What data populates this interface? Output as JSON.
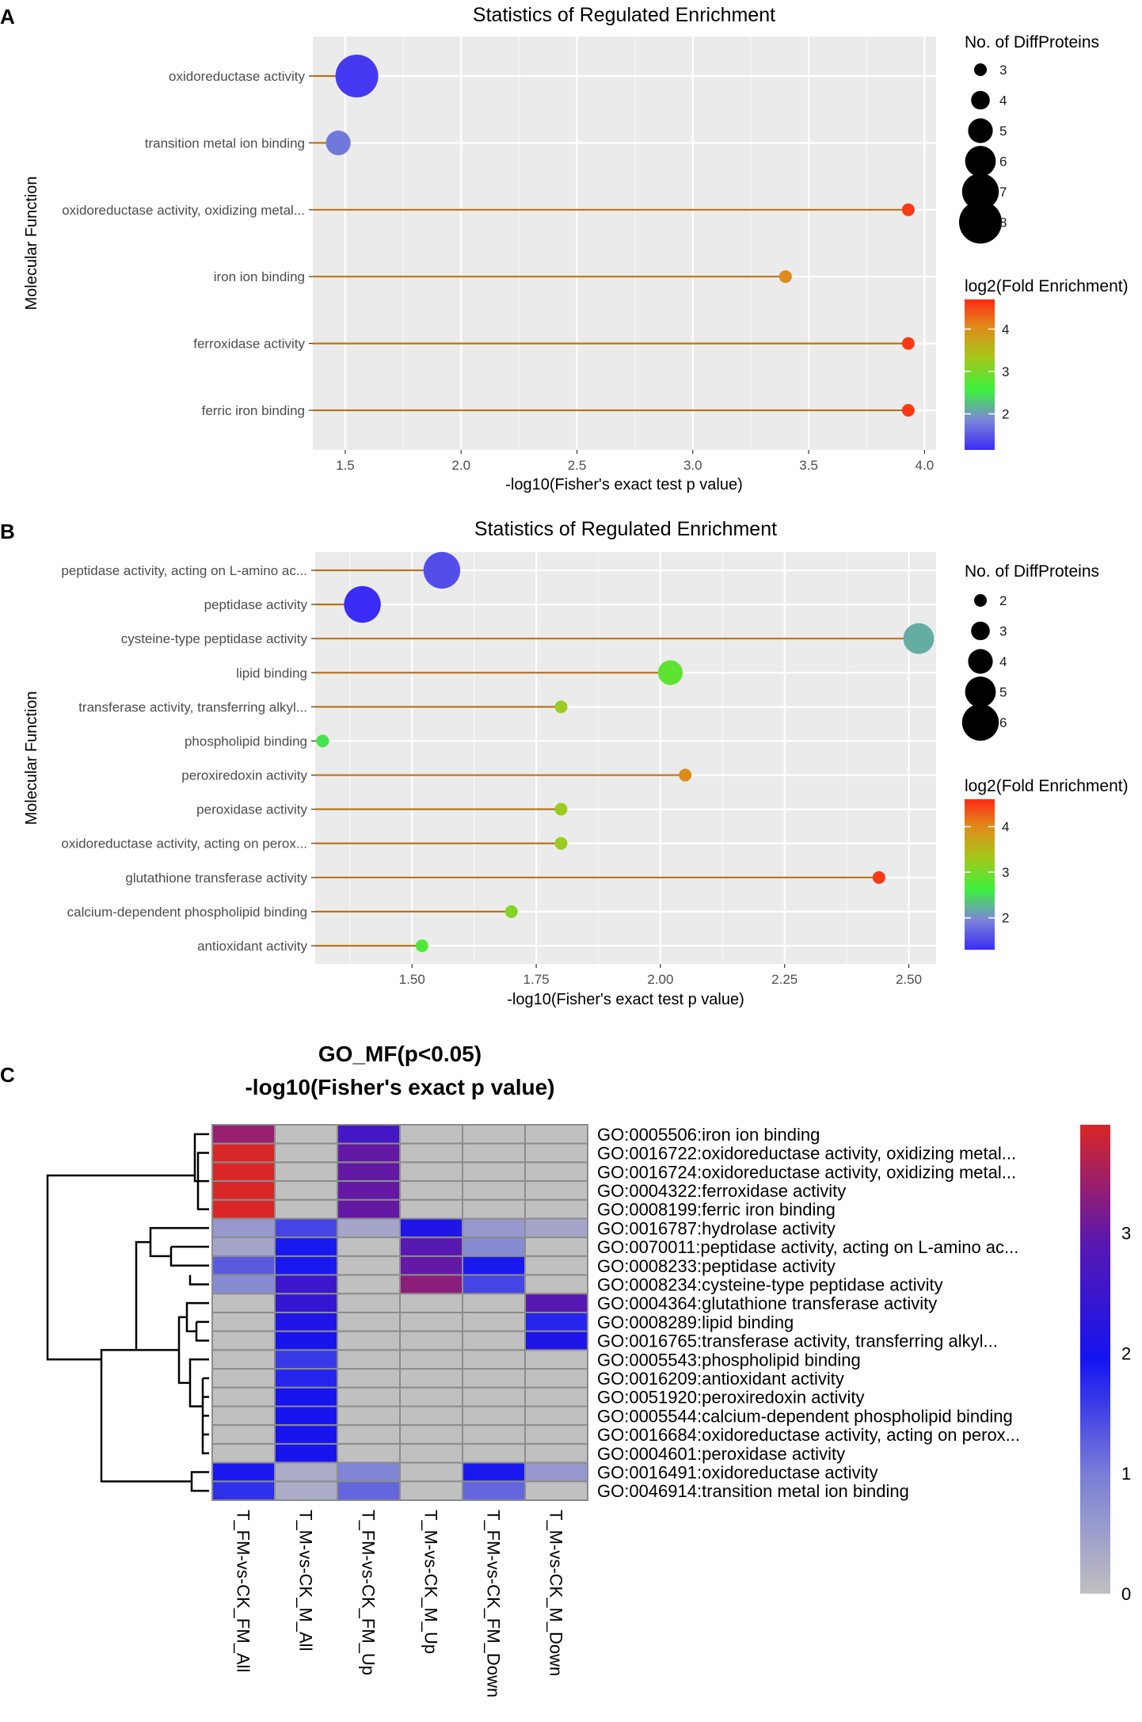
{
  "chart_data": [
    {
      "panel": "A",
      "type": "lollipop",
      "title": "Statistics of Regulated Enrichment",
      "xlabel": "-log10(Fisher's exact test p value)",
      "ylabel": "Molecular Function",
      "xlim": [
        1.36,
        4.05
      ],
      "xticks": [
        "1.5",
        "2.0",
        "2.5",
        "3.0",
        "3.5",
        "4.0"
      ],
      "categories": [
        "oxidoreductase activity",
        "transition metal ion binding",
        "oxidoreductase activity, oxidizing metal...",
        "iron ion binding",
        "ferroxidase activity",
        "ferric iron binding"
      ],
      "x": [
        1.55,
        1.47,
        3.93,
        3.4,
        3.93,
        3.93
      ],
      "count": [
        8,
        5,
        3,
        3,
        3,
        3
      ],
      "log2_fold_enrichment": [
        1.25,
        1.75,
        4.6,
        4.05,
        4.6,
        4.6
      ],
      "size_legend_title": "No. of DiffProteins",
      "size_legend": [
        "3",
        "4",
        "5",
        "6",
        "7",
        "8"
      ],
      "color_legend_title": "log2(Fold Enrichment)",
      "color_ticks": [
        "2",
        "3",
        "4"
      ],
      "color_range": [
        1.15,
        4.7
      ]
    },
    {
      "panel": "B",
      "type": "lollipop",
      "title": "Statistics of Regulated Enrichment",
      "xlabel": "-log10(Fisher's exact test p value)",
      "ylabel": "Molecular Function",
      "xlim": [
        1.305,
        2.555
      ],
      "xticks": [
        "1.50",
        "1.75",
        "2.00",
        "2.25",
        "2.50"
      ],
      "categories": [
        "peptidase activity, acting on L-amino ac...",
        "peptidase activity",
        "cysteine-type peptidase activity",
        "lipid binding",
        "transferase activity, transferring alkyl...",
        "phospholipid binding",
        "peroxiredoxin activity",
        "peroxidase activity",
        "oxidoreductase activity, acting on perox...",
        "glutathione transferase activity",
        "calcium-dependent phospholipid binding",
        "antioxidant activity"
      ],
      "x": [
        1.56,
        1.4,
        2.52,
        2.02,
        1.8,
        1.32,
        2.05,
        1.8,
        1.8,
        2.44,
        1.7,
        1.52
      ],
      "count": [
        6,
        6,
        5,
        4,
        2,
        2,
        2,
        2,
        2,
        2,
        2,
        2
      ],
      "log2_fold_enrichment": [
        1.55,
        1.3,
        2.2,
        2.85,
        3.25,
        2.55,
        4.0,
        3.25,
        3.25,
        4.5,
        3.1,
        2.75
      ],
      "size_legend_title": "No. of DiffProteins",
      "size_legend": [
        "2",
        "3",
        "4",
        "5",
        "6"
      ],
      "color_legend_title": "log2(Fold Enrichment)",
      "color_ticks": [
        "2",
        "3",
        "4"
      ],
      "color_range": [
        1.3,
        4.6
      ]
    },
    {
      "panel": "C",
      "type": "heatmap",
      "title_line1": "GO_MF(p<0.05)",
      "title_line2": "-log10(Fisher's exact p value)",
      "columns": [
        "T_FM-vs-CK_FM_All",
        "T_M-vs-CK_M_All",
        "T_FM-vs-CK_FM_Up",
        "T_M-vs-CK_M_Up",
        "T_FM-vs-CK_FM_Down",
        "T_M-vs-CK_M_Down"
      ],
      "rows": [
        "GO:0005506:iron ion binding",
        "GO:0016722:oxidoreductase activity, oxidizing metal...",
        "GO:0016724:oxidoreductase activity, oxidizing metal...",
        "GO:0004322:ferroxidase activity",
        "GO:0008199:ferric iron binding",
        "GO:0016787:hydrolase activity",
        "GO:0070011:peptidase activity, acting on L-amino ac...",
        "GO:0008233:peptidase activity",
        "GO:0008234:cysteine-type peptidase activity",
        "GO:0004364:glutathione transferase activity",
        "GO:0008289:lipid binding",
        "GO:0016765:transferase activity, transferring alkyl...",
        "GO:0005543:phospholipid binding",
        "GO:0016209:antioxidant activity",
        "GO:0051920:peroxiredoxin activity",
        "GO:0005544:calcium-dependent phospholipid binding",
        "GO:0016684:oxidoreductase activity, acting on perox...",
        "GO:0004601:peroxidase activity",
        "GO:0016491:oxidoreductase activity",
        "GO:0046914:transition metal ion binding"
      ],
      "values": [
        [
          3.4,
          0,
          2.6,
          0,
          0,
          0
        ],
        [
          3.9,
          0,
          3.0,
          0,
          0,
          0
        ],
        [
          3.9,
          0,
          3.0,
          0,
          0,
          0
        ],
        [
          3.9,
          0,
          3.0,
          0,
          0,
          0
        ],
        [
          3.9,
          0,
          3.0,
          0,
          0,
          0
        ],
        [
          0.6,
          1.5,
          0.4,
          2.1,
          0.6,
          0.4
        ],
        [
          0.4,
          1.9,
          0,
          2.9,
          0.8,
          0
        ],
        [
          1.3,
          1.9,
          0,
          3.0,
          1.9,
          0
        ],
        [
          0.8,
          2.5,
          0,
          3.3,
          1.5,
          0
        ],
        [
          0,
          2.4,
          0,
          0,
          0,
          2.9
        ],
        [
          0,
          2.1,
          0,
          0,
          0,
          1.8
        ],
        [
          0,
          2.0,
          0,
          0,
          0,
          2.1
        ],
        [
          0,
          1.6,
          0,
          0,
          0,
          0
        ],
        [
          0,
          1.8,
          0,
          0,
          0,
          0
        ],
        [
          0,
          2.0,
          0,
          0,
          0,
          0
        ],
        [
          0,
          2.0,
          0,
          0,
          0,
          0
        ],
        [
          0,
          2.0,
          0,
          0,
          0,
          0
        ],
        [
          0,
          2.0,
          0,
          0,
          0,
          0
        ],
        [
          1.9,
          0.3,
          0.9,
          0,
          1.9,
          0.6
        ],
        [
          1.7,
          0.3,
          1.2,
          0,
          1.2,
          0
        ]
      ],
      "color_ticks": [
        "0",
        "1",
        "2",
        "3"
      ],
      "color_range": [
        0,
        3.9
      ],
      "dendrogram": "hierarchical clustering of rows"
    }
  ],
  "panel_labels": [
    "A",
    "B",
    "C"
  ]
}
